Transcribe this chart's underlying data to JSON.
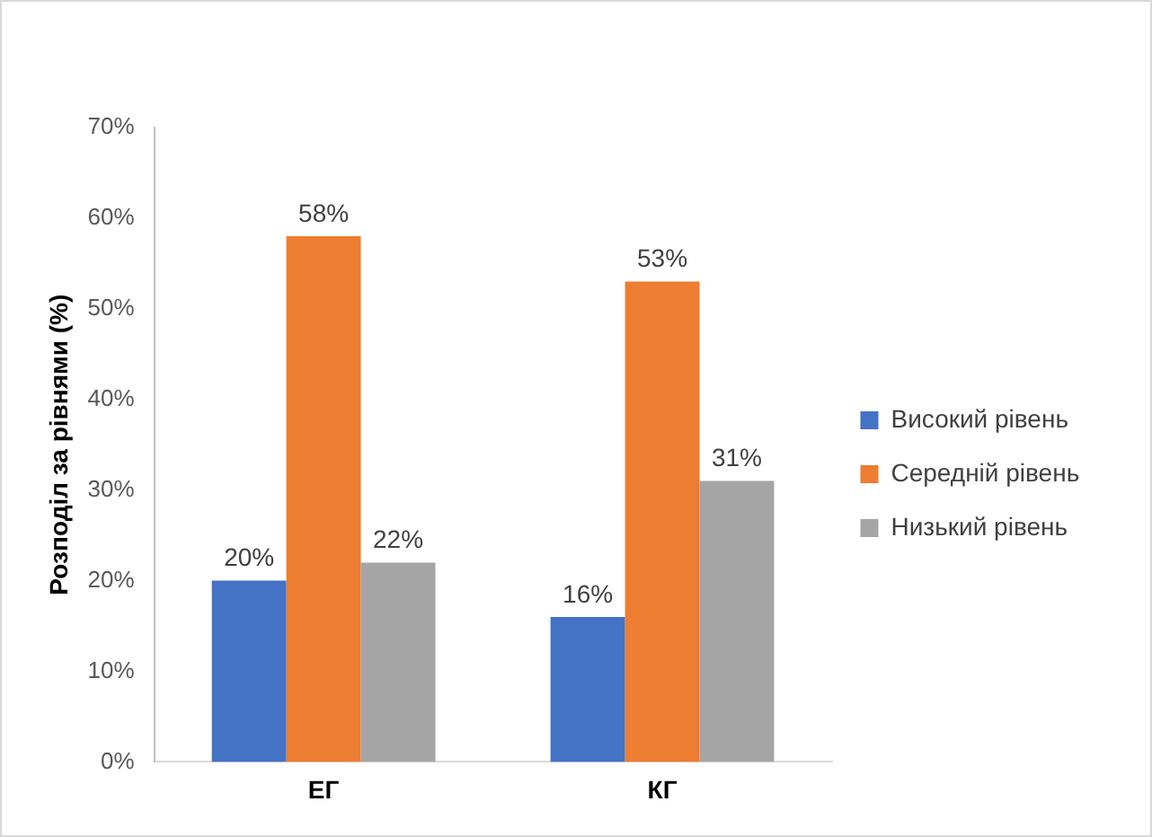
{
  "chart_data": {
    "type": "bar",
    "ylabel": "Розподіл за рівнями (%)",
    "categories": [
      "ЕГ",
      "КГ"
    ],
    "series": [
      {
        "name": "Високий рівень",
        "color": "#4472c4",
        "values": [
          20,
          16
        ]
      },
      {
        "name": "Середній рівень",
        "color": "#ed7d31",
        "values": [
          58,
          53
        ]
      },
      {
        "name": "Низький рівень",
        "color": "#a5a5a5",
        "values": [
          22,
          31
        ]
      }
    ],
    "ylim": [
      0,
      70
    ],
    "yticks": [
      {
        "value": 0,
        "label": "0%"
      },
      {
        "value": 10,
        "label": "10%"
      },
      {
        "value": 20,
        "label": "20%"
      },
      {
        "value": 30,
        "label": "30%"
      },
      {
        "value": 40,
        "label": "40%"
      },
      {
        "value": 50,
        "label": "50%"
      },
      {
        "value": 60,
        "label": "60%"
      },
      {
        "value": 70,
        "label": "70%"
      }
    ],
    "value_labels": [
      [
        "20%",
        "16%"
      ],
      [
        "58%",
        "53%"
      ],
      [
        "22%",
        "31%"
      ]
    ],
    "grid": false,
    "legend": "right"
  }
}
